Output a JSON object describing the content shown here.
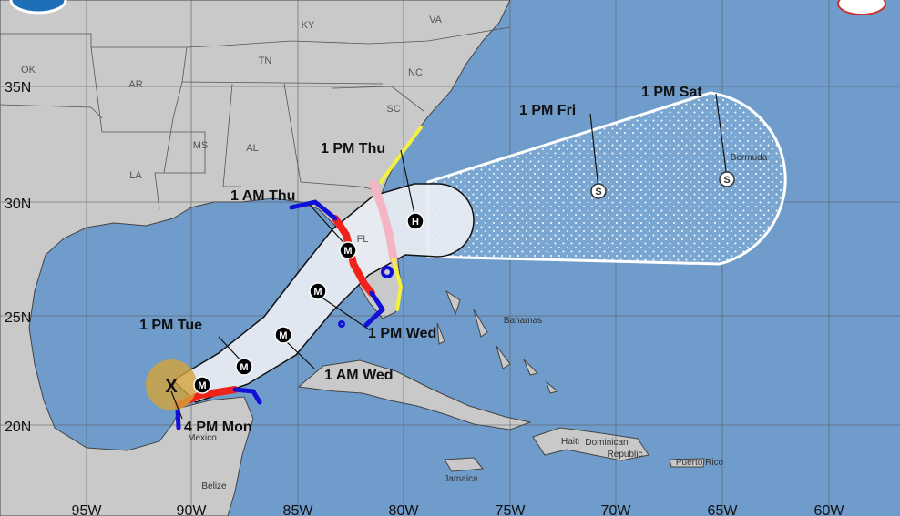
{
  "colors": {
    "ocean": "#6f9ccb",
    "land": "#c9c9c9",
    "cone": "#e9eef4",
    "hurricane_warning": "#f0221c",
    "tropical_storm_warning": "#1010d8",
    "hurricane_watch": "#f4b6c4",
    "tropical_storm_watch": "#f4f03c",
    "current_wind_field": "#d4a43a"
  },
  "lat_labels": [
    "35N",
    "30N",
    "25N",
    "20N"
  ],
  "lon_labels": [
    "95W",
    "90W",
    "85W",
    "80W",
    "75W",
    "70W",
    "65W",
    "60W"
  ],
  "states": [
    "OK",
    "AR",
    "TN",
    "KY",
    "VA",
    "NC",
    "SC",
    "MS",
    "AL",
    "LA",
    "FL"
  ],
  "places": [
    "Bahamas",
    "Bermuda",
    "Mexico",
    "Belize",
    "Haiti",
    "Dominican",
    "Republic",
    "Jamaica",
    "Puerto Rico"
  ],
  "forecast_points": [
    {
      "label": "4 PM Mon",
      "symbol": "X",
      "type": "current"
    },
    {
      "label": "",
      "symbol": "M",
      "type": "major"
    },
    {
      "label": "1 PM Tue",
      "symbol": "M",
      "type": "major"
    },
    {
      "label": "1 AM Wed",
      "symbol": "M",
      "type": "major"
    },
    {
      "label": "1 PM Wed",
      "symbol": "M",
      "type": "major"
    },
    {
      "label": "1 AM Thu",
      "symbol": "M",
      "type": "major"
    },
    {
      "label": "1 PM Thu",
      "symbol": "H",
      "type": "hurricane"
    },
    {
      "label": "1 PM Fri",
      "symbol": "S",
      "type": "subtropical"
    },
    {
      "label": "1 PM Sat",
      "symbol": "S",
      "type": "subtropical"
    }
  ]
}
